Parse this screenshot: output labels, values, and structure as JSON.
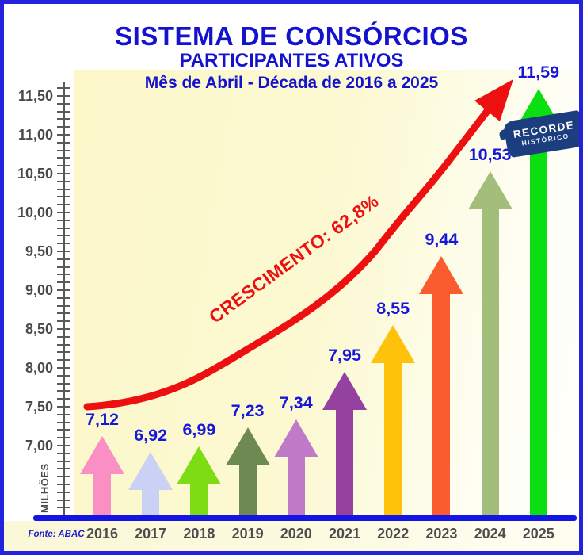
{
  "header": {
    "title": "SISTEMA DE CONSÓRCIOS",
    "subtitle": "PARTICIPANTES ATIVOS",
    "period": "Mês de Abril - Década de 2016 a 2025"
  },
  "annotations": {
    "growth_label": "CRESCIMENTO: 62,8%",
    "record_line1": "RECORDE",
    "record_line2": "HISTÓRICO"
  },
  "footer": {
    "source": "Fonte: ABAC"
  },
  "y_axis": {
    "unit_label": "MILHÕES",
    "min": 6.2,
    "max": 11.6,
    "minor_step": 0.1,
    "label_min": 7.0,
    "label_max": 11.5,
    "label_step": 0.5
  },
  "colors": {
    "title_blue": "#1512CE",
    "value_blue": "#1717DC",
    "growth_red": "#EC1010",
    "axis_blue": "#1414E4",
    "frame_blue": "#2323DD",
    "badge_navy": "#1D3E7E",
    "axis_text_gray": "#4A4A4A",
    "plot_yellow": "#FCF8CA"
  },
  "chart_data": {
    "type": "bar",
    "title": "SISTEMA DE CONSÓRCIOS — PARTICIPANTES ATIVOS",
    "subtitle": "Mês de Abril - Década de 2016 a 2025",
    "categories": [
      "2016",
      "2017",
      "2018",
      "2019",
      "2020",
      "2021",
      "2022",
      "2023",
      "2024",
      "2025"
    ],
    "values": [
      7.12,
      6.92,
      6.99,
      7.23,
      7.34,
      7.95,
      8.55,
      9.44,
      10.53,
      11.59
    ],
    "value_labels": [
      "7,12",
      "6,92",
      "6,99",
      "7,23",
      "7,34",
      "7,95",
      "8,55",
      "9,44",
      "10,53",
      "11,59"
    ],
    "bar_colors": [
      "#F98FC3",
      "#CBD1F5",
      "#7EDC15",
      "#6E8A52",
      "#C07BC8",
      "#94419F",
      "#FFC20A",
      "#FA5C2F",
      "#A3BD7B",
      "#0ADF12"
    ],
    "xlabel": "",
    "ylabel": "MILHÕES",
    "ylim": [
      6.2,
      11.6
    ],
    "grid": false,
    "legend": "none",
    "growth_annotation": "CRESCIMENTO: 62,8%",
    "record_annotation": "RECORDE HISTÓRICO",
    "source": "Fonte: ABAC"
  }
}
